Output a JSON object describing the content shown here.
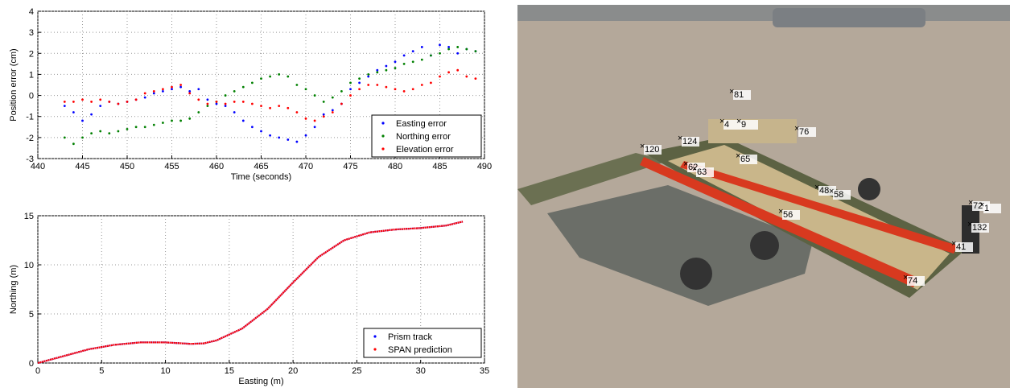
{
  "chart_data": [
    {
      "type": "scatter",
      "xlabel": "Time (seconds)",
      "ylabel": "Position error (cm)",
      "xlim": [
        440,
        490
      ],
      "xticks": [
        440,
        445,
        450,
        455,
        460,
        465,
        470,
        475,
        480,
        485,
        490
      ],
      "ylim": [
        -3,
        4
      ],
      "yticks": [
        -3,
        -2,
        -1,
        0,
        1,
        2,
        3,
        4
      ],
      "grid": true,
      "legend": "lower right",
      "x": [
        443,
        444,
        445,
        446,
        447,
        448,
        449,
        450,
        451,
        452,
        453,
        454,
        455,
        456,
        457,
        458,
        459,
        460,
        461,
        462,
        463,
        464,
        465,
        466,
        467,
        468,
        469,
        470,
        471,
        472,
        473,
        474,
        475,
        476,
        477,
        478,
        479,
        480,
        481,
        482,
        483,
        484,
        485,
        486,
        487,
        488,
        489
      ],
      "series": [
        {
          "name": "Easting error",
          "color": "#0000ff",
          "values": [
            -0.5,
            -0.8,
            -1.2,
            -0.9,
            -0.5,
            -0.3,
            -0.4,
            -0.3,
            -0.2,
            -0.1,
            0.1,
            0.2,
            0.3,
            0.4,
            0.2,
            0.3,
            -0.2,
            -0.4,
            -0.5,
            -0.8,
            -1.2,
            -1.5,
            -1.7,
            -1.9,
            -2.0,
            -2.1,
            -2.2,
            -1.9,
            -1.5,
            -0.9,
            -0.7,
            -0.4,
            0.3,
            0.6,
            0.9,
            1.2,
            1.4,
            1.6,
            1.9,
            2.1,
            2.3,
            1.9,
            2.4,
            2.3,
            2.0,
            2.2,
            2.1
          ]
        },
        {
          "name": "Northing error",
          "color": "#008000",
          "values": [
            -2.0,
            -2.3,
            -2.0,
            -1.8,
            -1.7,
            -1.8,
            -1.7,
            -1.6,
            -1.5,
            -1.5,
            -1.4,
            -1.3,
            -1.2,
            -1.2,
            -1.1,
            -0.8,
            -0.5,
            -0.3,
            0.0,
            0.2,
            0.4,
            0.6,
            0.8,
            0.9,
            1.0,
            0.9,
            0.5,
            0.3,
            0.0,
            -0.3,
            -0.1,
            0.2,
            0.6,
            0.8,
            1.0,
            1.1,
            1.2,
            1.3,
            1.5,
            1.6,
            1.7,
            1.9,
            2.0,
            2.2,
            2.3,
            2.2,
            2.1
          ]
        },
        {
          "name": "Elevation error",
          "color": "#ff0000",
          "values": [
            -0.3,
            -0.3,
            -0.2,
            -0.3,
            -0.2,
            -0.3,
            -0.4,
            -0.3,
            -0.2,
            0.1,
            0.2,
            0.3,
            0.4,
            0.5,
            0.1,
            -0.2,
            -0.4,
            -0.3,
            -0.4,
            -0.3,
            -0.3,
            -0.4,
            -0.5,
            -0.6,
            -0.5,
            -0.6,
            -0.8,
            -1.1,
            -1.2,
            -1.0,
            -0.8,
            -0.4,
            0.0,
            0.3,
            0.5,
            0.5,
            0.4,
            0.3,
            0.2,
            0.3,
            0.5,
            0.6,
            0.9,
            1.1,
            1.2,
            0.9,
            0.8
          ]
        }
      ]
    },
    {
      "type": "line",
      "xlabel": "Easting (m)",
      "ylabel": "Northing (m)",
      "xlim": [
        0,
        35
      ],
      "xticks": [
        0,
        5,
        10,
        15,
        20,
        25,
        30,
        35
      ],
      "ylim": [
        0,
        15
      ],
      "yticks": [
        0,
        5,
        10,
        15
      ],
      "grid": true,
      "legend": "lower right",
      "x": [
        0,
        2,
        4,
        6,
        8,
        10,
        12,
        13,
        14,
        16,
        18,
        20,
        22,
        24,
        26,
        28,
        30,
        32,
        33.3
      ],
      "series": [
        {
          "name": "Prism track",
          "color": "#0000ff",
          "values": [
            0,
            0.7,
            1.4,
            1.85,
            2.1,
            2.1,
            1.95,
            2.0,
            2.3,
            3.5,
            5.5,
            8.2,
            10.8,
            12.5,
            13.3,
            13.6,
            13.75,
            14.0,
            14.4
          ]
        },
        {
          "name": "SPAN prediction",
          "color": "#ff0000",
          "values": [
            0,
            0.7,
            1.4,
            1.85,
            2.1,
            2.1,
            1.95,
            2.0,
            2.3,
            3.5,
            5.5,
            8.2,
            10.8,
            12.5,
            13.3,
            13.6,
            13.75,
            14.0,
            14.4
          ]
        }
      ]
    }
  ],
  "photo": {
    "labels": [
      "81",
      "4",
      "9",
      "76",
      "120",
      "124",
      "62",
      "63",
      "65",
      "48",
      "58",
      "56",
      "72",
      "1",
      "132",
      "41",
      "74"
    ]
  }
}
